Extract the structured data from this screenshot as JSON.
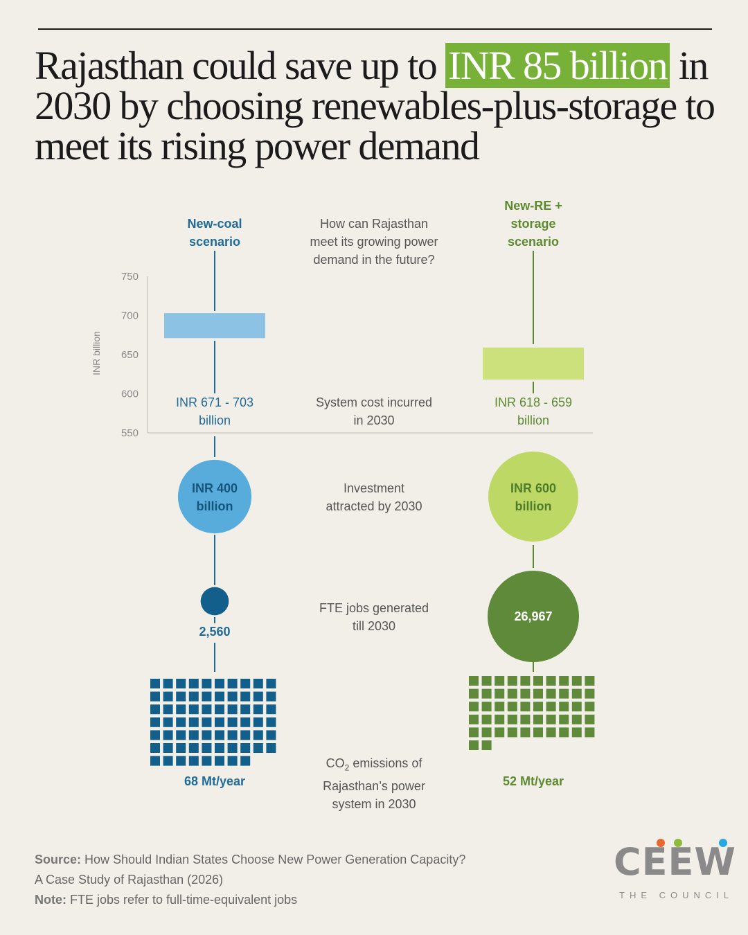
{
  "headline": {
    "part1": "Rajasthan could save up to ",
    "highlight": "INR 85 billion",
    "part2": " in 2030 by choosing renewables-plus-storage to meet its rising power demand",
    "highlight_color": "#77b137"
  },
  "columns": {
    "coal": {
      "title_line1": "New-coal",
      "title_line2": "scenario",
      "color": "#1f6b9a"
    },
    "re": {
      "title_line1": "New-RE +",
      "title_line2": "storage",
      "title_line3": "scenario",
      "color": "#5d8a2f"
    }
  },
  "rows": {
    "question": {
      "line1": "How can Rajasthan",
      "line2": "meet its growing power",
      "line3": "demand in the future?"
    },
    "system_cost": {
      "label_line1": "System cost incurred",
      "label_line2": "in 2030",
      "coal_line1": "INR 671 - 703",
      "coal_line2": "billion",
      "re_line1": "INR 618 - 659",
      "re_line2": "billion"
    },
    "investment": {
      "label_line1": "Investment",
      "label_line2": "attracted by 2030",
      "coal_line1": "INR 400",
      "coal_line2": "billion",
      "re_line1": "INR 600",
      "re_line2": "billion"
    },
    "jobs": {
      "label_line1": "FTE jobs generated",
      "label_line2": "till 2030",
      "coal_value": "2,560",
      "re_value": "26,967"
    },
    "emissions": {
      "label_line1_pre": "CO",
      "label_sub": "2",
      "label_line1_post": " emissions of",
      "label_line2": "Rajasthan’s power",
      "label_line3": "system in 2030",
      "coal_value": "68 Mt/year",
      "re_value": "52 Mt/year"
    }
  },
  "chart_data": {
    "type": "range-bar",
    "ylabel": "INR billion",
    "ylim": [
      550,
      750
    ],
    "yticks": [
      "750",
      "700",
      "650",
      "600",
      "550"
    ],
    "series": [
      {
        "name": "New-coal scenario",
        "low": 671,
        "high": 703,
        "color": "#8cc2e4"
      },
      {
        "name": "New-RE + storage scenario",
        "low": 618,
        "high": 659,
        "color": "#cce17c"
      }
    ],
    "investment_circles": [
      {
        "label": "INR 400 billion",
        "value": 400,
        "color": "#58acdc"
      },
      {
        "label": "INR 600 billion",
        "value": 600,
        "color": "#bed865"
      }
    ],
    "jobs_circles": [
      {
        "label": "2,560",
        "value": 2560,
        "color": "#135f8c"
      },
      {
        "label": "26,967",
        "value": 26967,
        "color": "#5e8a39"
      }
    ],
    "emission_squares": [
      {
        "label": "68 Mt/year",
        "value": 68,
        "color": "#135f8c"
      },
      {
        "label": "52 Mt/year",
        "value": 52,
        "color": "#5e8a39"
      }
    ]
  },
  "footer": {
    "source_label": "Source:",
    "source_text": " How Should Indian States Choose New Power Generation Capacity?",
    "source_text2": "A Case Study of Rajasthan (2026)",
    "note_label": "Note:",
    "note_text": " FTE jobs refer to full-time-equivalent jobs"
  },
  "logo": {
    "word": "CEEW",
    "subtitle": "THE COUNCIL",
    "dot_colors": [
      "#e8692f",
      "#8dbb3b",
      "#29a8df"
    ]
  }
}
